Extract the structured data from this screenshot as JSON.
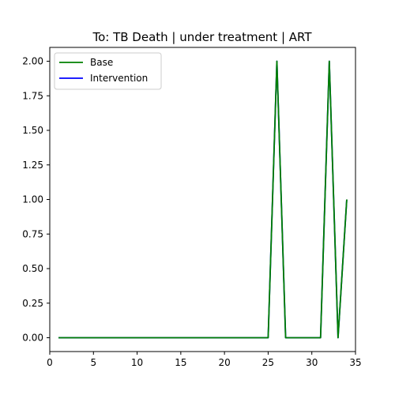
{
  "chart_data": {
    "type": "line",
    "title": "To: TB Death | under treatment | ART",
    "xlabel": "",
    "ylabel": "",
    "xlim": [
      0,
      35
    ],
    "ylim": [
      -0.1,
      2.1
    ],
    "xticks": [
      0,
      5,
      10,
      15,
      20,
      25,
      30,
      35
    ],
    "yticks": [
      0.0,
      0.25,
      0.5,
      0.75,
      1.0,
      1.25,
      1.5,
      1.75,
      2.0
    ],
    "ytick_labels": [
      "0.00",
      "0.25",
      "0.50",
      "0.75",
      "1.00",
      "1.25",
      "1.50",
      "1.75",
      "2.00"
    ],
    "legend_position": "top-left",
    "grid": false,
    "x": [
      1,
      2,
      3,
      4,
      5,
      6,
      7,
      8,
      9,
      10,
      11,
      12,
      13,
      14,
      15,
      16,
      17,
      18,
      19,
      20,
      21,
      22,
      23,
      24,
      25,
      26,
      27,
      28,
      29,
      30,
      31,
      32,
      33,
      34
    ],
    "series": [
      {
        "name": "Intervention",
        "color": "#0000ff",
        "values": [
          0,
          0,
          0,
          0,
          0,
          0,
          0,
          0,
          0,
          0,
          0,
          0,
          0,
          0,
          0,
          0,
          0,
          0,
          0,
          0,
          0,
          0,
          0,
          0,
          0,
          2,
          0,
          0,
          0,
          0,
          0,
          2,
          0,
          1
        ]
      },
      {
        "name": "Base",
        "color": "#008000",
        "values": [
          0,
          0,
          0,
          0,
          0,
          0,
          0,
          0,
          0,
          0,
          0,
          0,
          0,
          0,
          0,
          0,
          0,
          0,
          0,
          0,
          0,
          0,
          0,
          0,
          0,
          2,
          0,
          0,
          0,
          0,
          0,
          2,
          0,
          1
        ]
      }
    ],
    "legend_order": [
      "Base",
      "Intervention"
    ]
  }
}
